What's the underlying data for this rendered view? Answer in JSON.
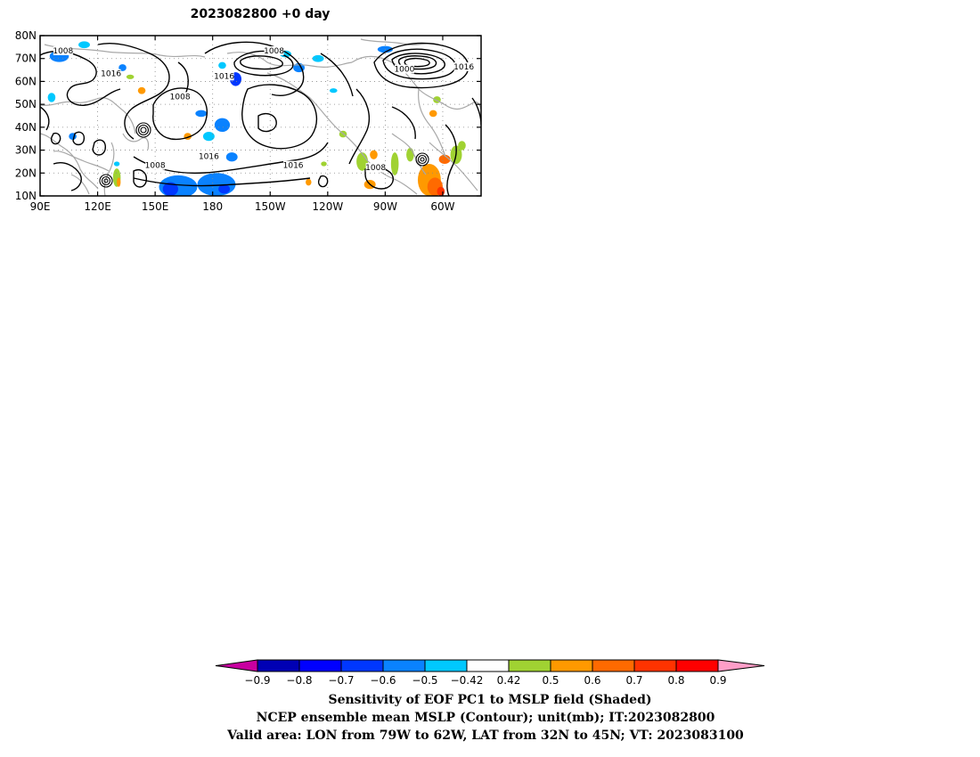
{
  "title": "2023082800  +0 day",
  "map": {
    "lon_labels": [
      "90E",
      "120E",
      "150E",
      "180",
      "150W",
      "120W",
      "90W",
      "60W"
    ],
    "lat_labels": [
      "80N",
      "70N",
      "60N",
      "50N",
      "40N",
      "30N",
      "20N",
      "10N"
    ],
    "contour_labels": [
      {
        "text": "1008",
        "lon": 102,
        "lat": 73
      },
      {
        "text": "1016",
        "lon": 127,
        "lat": 63
      },
      {
        "text": "1008",
        "lon": 150,
        "lat": 23
      },
      {
        "text": "1008",
        "lon": 163,
        "lat": 53
      },
      {
        "text": "1016",
        "lon": 186,
        "lat": 62
      },
      {
        "text": "1016",
        "lon": 178,
        "lat": 27
      },
      {
        "text": "1008",
        "lon": 212,
        "lat": 73
      },
      {
        "text": "1016",
        "lon": 222,
        "lat": 23
      },
      {
        "text": "1000",
        "lon": 280,
        "lat": 65
      },
      {
        "text": "1016",
        "lon": 311,
        "lat": 66
      },
      {
        "text": "1008",
        "lon": 265,
        "lat": 22
      }
    ],
    "shading": [
      {
        "lon": 100,
        "lat": 71,
        "rx": 5,
        "ry": 2.5,
        "color": "#0a82ff"
      },
      {
        "lon": 96,
        "lat": 53,
        "rx": 2,
        "ry": 2,
        "color": "#00c8ff"
      },
      {
        "lon": 113,
        "lat": 76,
        "rx": 3,
        "ry": 1.5,
        "color": "#00c8ff"
      },
      {
        "lon": 133,
        "lat": 66,
        "rx": 2,
        "ry": 1.5,
        "color": "#0a82ff"
      },
      {
        "lon": 137,
        "lat": 62,
        "rx": 2,
        "ry": 1,
        "color": "#a0d232"
      },
      {
        "lon": 143,
        "lat": 56,
        "rx": 2,
        "ry": 1.5,
        "color": "#ff9900"
      },
      {
        "lon": 107,
        "lat": 36,
        "rx": 2,
        "ry": 1.5,
        "color": "#0a82ff"
      },
      {
        "lon": 130,
        "lat": 18,
        "rx": 2,
        "ry": 4,
        "color": "#a0d232"
      },
      {
        "lon": 131,
        "lat": 16,
        "rx": 1,
        "ry": 2,
        "color": "#ff9900"
      },
      {
        "lon": 130,
        "lat": 24,
        "rx": 1.5,
        "ry": 1,
        "color": "#00c8ff"
      },
      {
        "lon": 162,
        "lat": 14,
        "rx": 10,
        "ry": 5,
        "color": "#0a82ff"
      },
      {
        "lon": 158,
        "lat": 13,
        "rx": 4,
        "ry": 3,
        "color": "#0037ff"
      },
      {
        "lon": 182,
        "lat": 15,
        "rx": 10,
        "ry": 5,
        "color": "#0a82ff"
      },
      {
        "lon": 186,
        "lat": 13,
        "rx": 3,
        "ry": 2,
        "color": "#0037ff"
      },
      {
        "lon": 190,
        "lat": 27,
        "rx": 3,
        "ry": 2,
        "color": "#0a82ff"
      },
      {
        "lon": 185,
        "lat": 41,
        "rx": 4,
        "ry": 3,
        "color": "#0a82ff"
      },
      {
        "lon": 174,
        "lat": 46,
        "rx": 3,
        "ry": 1.5,
        "color": "#0a82ff"
      },
      {
        "lon": 178,
        "lat": 36,
        "rx": 3,
        "ry": 2,
        "color": "#00c8ff"
      },
      {
        "lon": 167,
        "lat": 36,
        "rx": 2,
        "ry": 1.5,
        "color": "#ff9900"
      },
      {
        "lon": 192,
        "lat": 61,
        "rx": 3,
        "ry": 3,
        "color": "#0037ff"
      },
      {
        "lon": 185,
        "lat": 67,
        "rx": 2,
        "ry": 1.5,
        "color": "#00c8ff"
      },
      {
        "lon": 225,
        "lat": 66,
        "rx": 3,
        "ry": 2,
        "color": "#0a82ff"
      },
      {
        "lon": 235,
        "lat": 70,
        "rx": 3,
        "ry": 1.5,
        "color": "#00c8ff"
      },
      {
        "lon": 218,
        "lat": 72,
        "rx": 3,
        "ry": 1.5,
        "color": "#00c8ff"
      },
      {
        "lon": 243,
        "lat": 56,
        "rx": 2,
        "ry": 1,
        "color": "#00c8ff"
      },
      {
        "lon": 270,
        "lat": 74,
        "rx": 4,
        "ry": 1.5,
        "color": "#0a82ff"
      },
      {
        "lon": 248,
        "lat": 37,
        "rx": 2,
        "ry": 1.5,
        "color": "#a0d232"
      },
      {
        "lon": 258,
        "lat": 25,
        "rx": 3,
        "ry": 4,
        "color": "#a0d232"
      },
      {
        "lon": 264,
        "lat": 28,
        "rx": 2,
        "ry": 2,
        "color": "#ff9900"
      },
      {
        "lon": 262,
        "lat": 15,
        "rx": 3,
        "ry": 2,
        "color": "#ff9900"
      },
      {
        "lon": 275,
        "lat": 24,
        "rx": 2,
        "ry": 5,
        "color": "#a0d232"
      },
      {
        "lon": 283,
        "lat": 28,
        "rx": 2,
        "ry": 3,
        "color": "#a0d232"
      },
      {
        "lon": 293,
        "lat": 17,
        "rx": 6,
        "ry": 7,
        "color": "#ff9900"
      },
      {
        "lon": 296,
        "lat": 14,
        "rx": 4,
        "ry": 4,
        "color": "#ff6a00"
      },
      {
        "lon": 299,
        "lat": 12,
        "rx": 2,
        "ry": 2,
        "color": "#ff3300"
      },
      {
        "lon": 301,
        "lat": 26,
        "rx": 3,
        "ry": 2,
        "color": "#ff6a00"
      },
      {
        "lon": 307,
        "lat": 28,
        "rx": 3,
        "ry": 4,
        "color": "#a0d232"
      },
      {
        "lon": 310,
        "lat": 32,
        "rx": 2,
        "ry": 2,
        "color": "#a0d232"
      },
      {
        "lon": 295,
        "lat": 46,
        "rx": 2,
        "ry": 1.5,
        "color": "#ff9900"
      },
      {
        "lon": 297,
        "lat": 52,
        "rx": 2,
        "ry": 1.5,
        "color": "#a0d232"
      },
      {
        "lon": 238,
        "lat": 24,
        "rx": 1.5,
        "ry": 1,
        "color": "#a0d232"
      },
      {
        "lon": 230,
        "lat": 16,
        "rx": 1.5,
        "ry": 1.5,
        "color": "#ff9900"
      }
    ]
  },
  "colorbar": {
    "colors": [
      "#c800a0",
      "#0000b4",
      "#0000ff",
      "#0037ff",
      "#0a82ff",
      "#00c8ff",
      "#ffffff",
      "#a0d232",
      "#ff9900",
      "#ff6a00",
      "#ff3300",
      "#ff0000",
      "#ff9ec8"
    ],
    "labels": [
      "−0.9",
      "−0.8",
      "−0.7",
      "−0.6",
      "−0.5",
      "−0.42",
      "0.42",
      "0.5",
      "0.6",
      "0.7",
      "0.8",
      "0.9"
    ]
  },
  "caption": {
    "line1": "Sensitivity of EOF PC1 to MSLP field (Shaded)",
    "line2": "NCEP ensemble mean MSLP (Contour); unit(mb); IT:2023082800",
    "line3": "Valid area: LON from 79W to 62W, LAT from 32N to 45N; VT: 2023083100"
  }
}
